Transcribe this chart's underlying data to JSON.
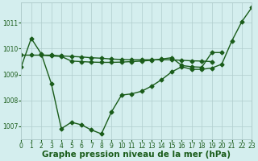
{
  "x_hours": [
    0,
    1,
    2,
    3,
    4,
    5,
    6,
    7,
    8,
    9,
    10,
    11,
    12,
    13,
    14,
    15,
    16,
    17,
    18,
    19,
    20,
    21,
    22,
    23
  ],
  "line1": [
    1009.3,
    1010.4,
    1009.8,
    1008.65,
    1006.9,
    1007.15,
    1007.05,
    1006.85,
    1006.7,
    1007.55,
    1008.2,
    1008.25,
    1008.35,
    1008.55,
    1008.8,
    1009.1,
    1009.3,
    1009.2,
    1009.2,
    1009.25,
    1009.4,
    1010.3,
    1011.05,
    1011.6
  ],
  "line2": [
    1009.75,
    1009.75,
    1009.75,
    1009.75,
    1009.72,
    1009.7,
    1009.68,
    1009.65,
    1009.63,
    1009.6,
    1009.58,
    1009.57,
    1009.57,
    1009.57,
    1009.57,
    1009.57,
    1009.55,
    1009.53,
    1009.52,
    1009.5,
    null,
    null,
    null,
    null
  ],
  "line3": [
    null,
    null,
    1009.75,
    1009.72,
    1009.7,
    1009.52,
    1009.5,
    1009.48,
    1009.47,
    1009.47,
    1009.48,
    1009.5,
    1009.52,
    1009.55,
    1009.6,
    1009.65,
    1009.35,
    1009.3,
    1009.28,
    1009.85,
    1009.85,
    null,
    null,
    null
  ],
  "bg_color": "#d4eeee",
  "grid_color": "#b0cccc",
  "line_color": "#1a5c1a",
  "marker": "D",
  "markersize": 2.5,
  "linewidth": 1.0,
  "xlabel": "Graphe pression niveau de la mer (hPa)",
  "xlim": [
    0,
    23
  ],
  "ylim": [
    1006.5,
    1011.8
  ],
  "yticks": [
    1007,
    1008,
    1009,
    1010,
    1011
  ],
  "xticks": [
    0,
    1,
    2,
    3,
    4,
    5,
    6,
    7,
    8,
    9,
    10,
    11,
    12,
    13,
    14,
    15,
    16,
    17,
    18,
    19,
    20,
    21,
    22,
    23
  ],
  "tick_fontsize": 5.5,
  "xlabel_fontsize": 7.5
}
